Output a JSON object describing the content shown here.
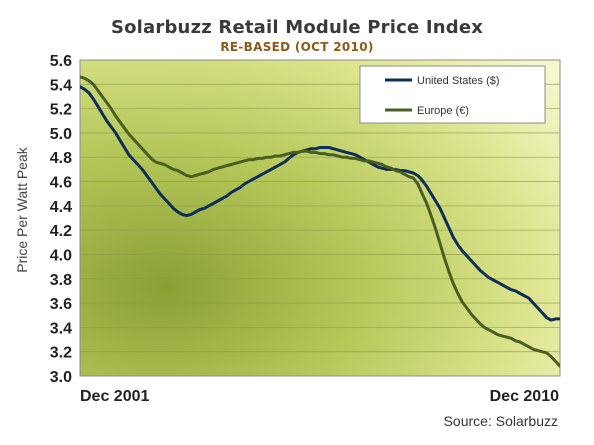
{
  "colors": {
    "us_line": "#0d2d5a",
    "eu_line": "#4a5e22",
    "plot_bg_dark": "#8fa43a",
    "plot_bg_light": "#f4f6c8"
  },
  "chart_data": {
    "type": "line",
    "title": "Solarbuzz Retail Module Price Index",
    "subtitle": "RE-BASED (OCT 2010)",
    "ylabel": "Price Per Watt Peak",
    "xlabel": "",
    "x_tick_labels": [
      "Dec 2001",
      "Dec 2010"
    ],
    "x_range": [
      "Dec 2001",
      "Dec 2010"
    ],
    "ylim": [
      3.0,
      5.6
    ],
    "y_ticks": [
      "3.0",
      "3.2",
      "3.4",
      "3.6",
      "3.8",
      "4.0",
      "4.2",
      "4.4",
      "4.6",
      "4.8",
      "5.0",
      "5.2",
      "5.4",
      "5.6"
    ],
    "grid": true,
    "legend_position": "top-right",
    "source": "Source: Solarbuzz",
    "series": [
      {
        "name": "United States ($)",
        "color": "#0d2d5a",
        "x": [
          0,
          1,
          2,
          3,
          4,
          5,
          6,
          7,
          8,
          9,
          10,
          11,
          12,
          13,
          14,
          15,
          16,
          17,
          18,
          19,
          20,
          21,
          22,
          23,
          24,
          25,
          26,
          27,
          28,
          29,
          30,
          31,
          32,
          33,
          34,
          35,
          36,
          37,
          38,
          39,
          40,
          41,
          42,
          43,
          44,
          45,
          46,
          47,
          48,
          49,
          50,
          51,
          52,
          53,
          54,
          55,
          56,
          57,
          58,
          59,
          60,
          61,
          62,
          63,
          64,
          65,
          66,
          67,
          68,
          69,
          70,
          71,
          72,
          73,
          74,
          75,
          76,
          77,
          78,
          79,
          80,
          81,
          82,
          83,
          84,
          85,
          86,
          87,
          88,
          89,
          90,
          91,
          92,
          93,
          94,
          95,
          96,
          97,
          98,
          99,
          100,
          101,
          102,
          103,
          104,
          105,
          106,
          107,
          108
        ],
        "values": [
          5.38,
          5.36,
          5.33,
          5.28,
          5.22,
          5.16,
          5.1,
          5.05,
          5.0,
          4.94,
          4.88,
          4.82,
          4.78,
          4.74,
          4.7,
          4.65,
          4.6,
          4.55,
          4.5,
          4.46,
          4.42,
          4.38,
          4.35,
          4.33,
          4.32,
          4.33,
          4.35,
          4.37,
          4.38,
          4.4,
          4.42,
          4.44,
          4.46,
          4.48,
          4.51,
          4.53,
          4.55,
          4.58,
          4.6,
          4.62,
          4.64,
          4.66,
          4.68,
          4.7,
          4.72,
          4.74,
          4.76,
          4.79,
          4.82,
          4.84,
          4.85,
          4.86,
          4.87,
          4.87,
          4.88,
          4.88,
          4.88,
          4.87,
          4.86,
          4.85,
          4.84,
          4.83,
          4.82,
          4.8,
          4.78,
          4.76,
          4.74,
          4.72,
          4.71,
          4.7,
          4.7,
          4.7,
          4.69,
          4.69,
          4.68,
          4.67,
          4.65,
          4.61,
          4.56,
          4.5,
          4.44,
          4.38,
          4.3,
          4.22,
          4.14,
          4.08,
          4.03,
          3.99,
          3.95,
          3.91,
          3.87,
          3.84,
          3.81,
          3.79,
          3.77,
          3.75,
          3.73,
          3.71,
          3.7,
          3.68,
          3.66,
          3.64,
          3.6,
          3.56,
          3.52,
          3.48,
          3.46,
          3.47,
          3.47
        ]
      },
      {
        "name": "Europe (€)",
        "color": "#4a5e22",
        "x": [
          0,
          1,
          2,
          3,
          4,
          5,
          6,
          7,
          8,
          9,
          10,
          11,
          12,
          13,
          14,
          15,
          16,
          17,
          18,
          19,
          20,
          21,
          22,
          23,
          24,
          25,
          26,
          27,
          28,
          29,
          30,
          31,
          32,
          33,
          34,
          35,
          36,
          37,
          38,
          39,
          40,
          41,
          42,
          43,
          44,
          45,
          46,
          47,
          48,
          49,
          50,
          51,
          52,
          53,
          54,
          55,
          56,
          57,
          58,
          59,
          60,
          61,
          62,
          63,
          64,
          65,
          66,
          67,
          68,
          69,
          70,
          71,
          72,
          73,
          74,
          75,
          76,
          77,
          78,
          79,
          80,
          81,
          82,
          83,
          84,
          85,
          86,
          87,
          88,
          89,
          90,
          91,
          92,
          93,
          94,
          95,
          96,
          97,
          98,
          99,
          100,
          101,
          102,
          103,
          104,
          105,
          106,
          107,
          108
        ],
        "values": [
          5.46,
          5.45,
          5.43,
          5.4,
          5.35,
          5.3,
          5.25,
          5.2,
          5.14,
          5.09,
          5.04,
          4.99,
          4.95,
          4.91,
          4.87,
          4.83,
          4.79,
          4.76,
          4.75,
          4.74,
          4.72,
          4.7,
          4.69,
          4.67,
          4.65,
          4.64,
          4.65,
          4.66,
          4.67,
          4.68,
          4.7,
          4.71,
          4.72,
          4.73,
          4.74,
          4.75,
          4.76,
          4.77,
          4.78,
          4.78,
          4.79,
          4.79,
          4.8,
          4.8,
          4.81,
          4.81,
          4.82,
          4.83,
          4.84,
          4.84,
          4.85,
          4.85,
          4.84,
          4.84,
          4.83,
          4.83,
          4.82,
          4.82,
          4.81,
          4.8,
          4.8,
          4.79,
          4.79,
          4.78,
          4.77,
          4.77,
          4.76,
          4.75,
          4.74,
          4.72,
          4.71,
          4.69,
          4.68,
          4.66,
          4.64,
          4.63,
          4.58,
          4.5,
          4.42,
          4.32,
          4.21,
          4.09,
          3.97,
          3.86,
          3.76,
          3.68,
          3.61,
          3.56,
          3.51,
          3.47,
          3.43,
          3.4,
          3.38,
          3.36,
          3.34,
          3.33,
          3.32,
          3.31,
          3.29,
          3.28,
          3.26,
          3.24,
          3.22,
          3.21,
          3.2,
          3.19,
          3.16,
          3.12,
          3.08
        ]
      }
    ]
  }
}
